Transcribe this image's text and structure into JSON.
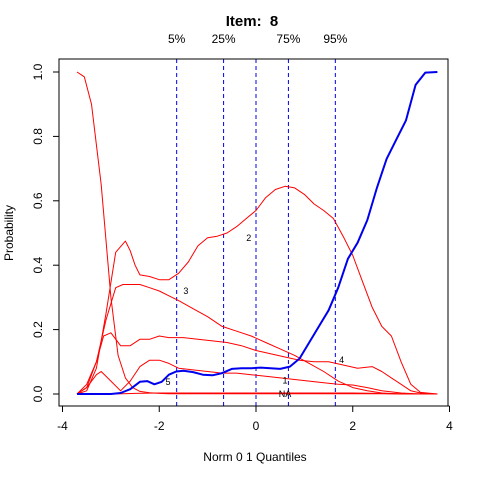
{
  "chart_data": {
    "type": "line",
    "title": "Item:  8",
    "xlabel": "Norm 0 1 Quantiles",
    "ylabel": "Probability",
    "xlim": [
      -4,
      4
    ],
    "ylim": [
      0,
      1
    ],
    "x_ticks": [
      -4,
      -2,
      0,
      2,
      4
    ],
    "x_tick_labels": [
      "-4",
      "-2",
      "0",
      "2",
      "4"
    ],
    "y_ticks": [
      0,
      0.2,
      0.4,
      0.6,
      0.8,
      1.0
    ],
    "y_tick_labels": [
      "0.0",
      "0.2",
      "0.4",
      "0.6",
      "0.8",
      "1.0"
    ],
    "quantile_lines": [
      {
        "label": "5%",
        "x": -1.64
      },
      {
        "label": "25%",
        "x": -0.67
      },
      {
        "label": "",
        "x": 0.0
      },
      {
        "label": "75%",
        "x": 0.67
      },
      {
        "label": "95%",
        "x": 1.64
      }
    ],
    "colors": {
      "options": "#ff0000",
      "key": "#0000ee",
      "quantiles": "#0000ee"
    },
    "series": [
      {
        "name": "1",
        "color": "#ff0000",
        "label_at": [
          0.6,
          0.042
        ],
        "x": [
          -3.7,
          -3.55,
          -3.4,
          -3.2,
          -3.0,
          -2.85,
          -2.7,
          -2.55,
          -2.4,
          -2.2,
          -2.0,
          -1.8,
          -1.6,
          -1.3,
          -1.0,
          -0.7,
          -0.4,
          -0.1,
          0.2,
          0.5,
          0.8,
          1.1,
          1.4,
          1.7,
          2.0,
          2.3,
          2.6,
          3.0,
          3.4,
          3.75
        ],
        "y": [
          1.0,
          0.985,
          0.9,
          0.65,
          0.3,
          0.12,
          0.05,
          0.02,
          0.008,
          0.004,
          0.002,
          0.001,
          0.001,
          0.001,
          0.001,
          0.001,
          0.001,
          0.001,
          0.001,
          0.001,
          0.001,
          0.001,
          0.001,
          0.001,
          0.001,
          0.001,
          0.001,
          0.0,
          0.0,
          0.0
        ]
      },
      {
        "name": "2",
        "color": "#ff0000",
        "label_at": [
          -0.15,
          0.485
        ],
        "x": [
          -3.7,
          -3.5,
          -3.3,
          -3.1,
          -2.9,
          -2.7,
          -2.6,
          -2.5,
          -2.4,
          -2.2,
          -2.0,
          -1.8,
          -1.6,
          -1.4,
          -1.2,
          -1.0,
          -0.8,
          -0.6,
          -0.4,
          -0.2,
          0.0,
          0.2,
          0.4,
          0.6,
          0.8,
          1.0,
          1.2,
          1.4,
          1.6,
          1.8,
          2.0,
          2.2,
          2.4,
          2.6,
          2.8,
          3.0,
          3.2,
          3.4,
          3.75
        ],
        "y": [
          0.0,
          0.01,
          0.08,
          0.25,
          0.44,
          0.475,
          0.445,
          0.4,
          0.37,
          0.365,
          0.355,
          0.355,
          0.375,
          0.41,
          0.46,
          0.485,
          0.49,
          0.5,
          0.52,
          0.545,
          0.57,
          0.61,
          0.635,
          0.645,
          0.64,
          0.62,
          0.59,
          0.57,
          0.545,
          0.49,
          0.43,
          0.35,
          0.27,
          0.21,
          0.18,
          0.1,
          0.03,
          0.005,
          0.0
        ]
      },
      {
        "name": "3",
        "color": "#ff0000",
        "label_at": [
          -1.45,
          0.32
        ],
        "x": [
          -3.7,
          -3.5,
          -3.3,
          -3.1,
          -2.9,
          -2.75,
          -2.6,
          -2.4,
          -2.2,
          -2.0,
          -1.8,
          -1.6,
          -1.3,
          -1.0,
          -0.7,
          -0.4,
          -0.1,
          0.2,
          0.5,
          0.8,
          1.1,
          1.4,
          1.7,
          2.0,
          2.3,
          2.6,
          3.0,
          3.4,
          3.75
        ],
        "y": [
          0.0,
          0.02,
          0.1,
          0.23,
          0.33,
          0.34,
          0.34,
          0.34,
          0.33,
          0.32,
          0.305,
          0.29,
          0.265,
          0.24,
          0.21,
          0.195,
          0.18,
          0.16,
          0.14,
          0.12,
          0.095,
          0.07,
          0.04,
          0.02,
          0.01,
          0.003,
          0.0,
          0.0,
          0.0
        ]
      },
      {
        "name": "4",
        "color": "#ff0000",
        "label_at": [
          1.77,
          0.105
        ],
        "x": [
          -3.7,
          -3.5,
          -3.3,
          -3.15,
          -3.0,
          -2.8,
          -2.6,
          -2.4,
          -2.2,
          -2.0,
          -1.8,
          -1.5,
          -1.2,
          -0.9,
          -0.6,
          -0.3,
          0.0,
          0.3,
          0.6,
          0.9,
          1.2,
          1.5,
          1.8,
          2.1,
          2.4,
          2.6,
          2.8,
          3.0,
          3.2,
          3.4,
          3.75
        ],
        "y": [
          0.0,
          0.03,
          0.1,
          0.18,
          0.19,
          0.15,
          0.15,
          0.17,
          0.17,
          0.18,
          0.175,
          0.175,
          0.17,
          0.165,
          0.16,
          0.15,
          0.135,
          0.125,
          0.115,
          0.105,
          0.1,
          0.1,
          0.09,
          0.08,
          0.085,
          0.07,
          0.05,
          0.03,
          0.01,
          0.003,
          0.0
        ]
      },
      {
        "name": "5",
        "color": "#ff0000",
        "label_at": [
          -1.82,
          0.037
        ],
        "x": [
          -3.7,
          -3.5,
          -3.3,
          -3.2,
          -3.0,
          -2.8,
          -2.6,
          -2.4,
          -2.2,
          -2.0,
          -1.8,
          -1.6,
          -1.3,
          -1.0,
          -0.7,
          -0.4,
          -0.1,
          0.2,
          0.5,
          0.8,
          1.1,
          1.4,
          1.7,
          2.0,
          2.3,
          2.6,
          3.0,
          3.4,
          3.75
        ],
        "y": [
          0.0,
          0.02,
          0.06,
          0.07,
          0.04,
          0.01,
          0.04,
          0.085,
          0.105,
          0.105,
          0.095,
          0.08,
          0.075,
          0.07,
          0.065,
          0.065,
          0.06,
          0.055,
          0.05,
          0.045,
          0.04,
          0.035,
          0.03,
          0.028,
          0.02,
          0.01,
          0.003,
          0.0,
          0.0
        ]
      },
      {
        "name": "NA",
        "color": "#ff0000",
        "label_at": [
          0.6,
          0.0
        ],
        "x": [
          -3.7,
          -3.0,
          -2.5,
          -2.0,
          -1.5,
          -1.0,
          -0.5,
          0.0,
          0.5,
          1.0,
          1.5,
          2.0,
          2.5,
          3.0,
          3.75
        ],
        "y": [
          0.0,
          0.0,
          0.002,
          0.003,
          0.003,
          0.003,
          0.003,
          0.003,
          0.003,
          0.003,
          0.003,
          0.003,
          0.002,
          0.001,
          0.0
        ]
      },
      {
        "name": "",
        "key": true,
        "color": "#0000ee",
        "x": [
          -3.7,
          -3.3,
          -3.0,
          -2.8,
          -2.6,
          -2.4,
          -2.25,
          -2.1,
          -1.95,
          -1.8,
          -1.65,
          -1.5,
          -1.3,
          -1.1,
          -0.9,
          -0.7,
          -0.5,
          -0.3,
          -0.1,
          0.1,
          0.3,
          0.5,
          0.7,
          0.9,
          1.1,
          1.3,
          1.5,
          1.7,
          1.9,
          2.1,
          2.3,
          2.5,
          2.7,
          2.9,
          3.1,
          3.3,
          3.5,
          3.75
        ],
        "y": [
          0.0,
          0.0,
          0.0,
          0.003,
          0.015,
          0.038,
          0.04,
          0.03,
          0.038,
          0.06,
          0.07,
          0.072,
          0.068,
          0.06,
          0.058,
          0.065,
          0.078,
          0.08,
          0.08,
          0.082,
          0.08,
          0.078,
          0.085,
          0.11,
          0.16,
          0.21,
          0.26,
          0.33,
          0.42,
          0.47,
          0.54,
          0.64,
          0.73,
          0.79,
          0.85,
          0.96,
          0.998,
          1.0
        ]
      }
    ]
  }
}
